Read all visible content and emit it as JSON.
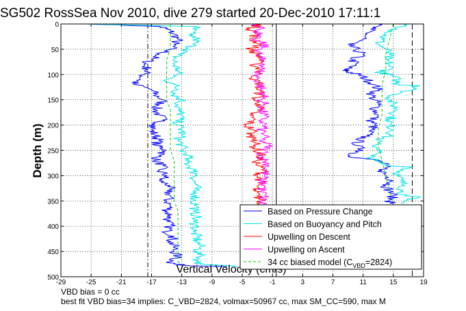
{
  "chart_data": {
    "type": "line",
    "title": "SG502 RossSea Nov 2010, dive 279 started 20-Dec-2010 17:11:1",
    "xlabel": "Vertical Velocity (cm/s)",
    "ylabel": "Depth (m)",
    "xlim": [
      -29,
      19
    ],
    "ylim": [
      500,
      0
    ],
    "y_inverted": true,
    "grid": true,
    "grid_style": "dotted",
    "legend_position": "bottom-right",
    "xticks": [
      -29,
      -25,
      -21,
      -17,
      -13,
      -9,
      -5,
      -1,
      3,
      7,
      11,
      15,
      19
    ],
    "yticks": [
      0,
      50,
      100,
      150,
      200,
      250,
      300,
      350,
      400,
      450,
      500
    ],
    "reference_lines": [
      {
        "x": -17.5,
        "style": "dash-dot",
        "color": "#000000"
      },
      {
        "x": -0.5,
        "style": "solid",
        "color": "#000000"
      },
      {
        "x": 17.5,
        "style": "dashed",
        "color": "#000000"
      }
    ],
    "series": [
      {
        "name": "Based on Pressure Change",
        "color": "#0000ff",
        "groups": [
          {
            "depth": [
              0,
              5,
              10,
              20,
              30,
              40,
              50,
              60,
              70,
              80,
              90,
              100,
              110,
              118,
              130,
              140,
              150,
              160,
              170,
              180,
              190,
              200,
              210,
              220,
              230,
              240,
              250,
              260,
              270,
              280,
              290,
              300,
              310,
              320,
              330,
              340,
              350,
              360,
              370,
              380,
              390,
              400,
              410,
              420,
              430,
              440,
              450,
              460,
              470,
              475,
              478,
              480
            ],
            "velocity": [
              -25,
              -16,
              -15,
              -14,
              -13.5,
              -14,
              -14.5,
              -16,
              -17,
              -18,
              -17.5,
              -18,
              -18.5,
              -19.5,
              -17,
              -16.5,
              -15.5,
              -16,
              -16.5,
              -16,
              -15.5,
              -16.5,
              -17,
              -16.5,
              -16,
              -16.5,
              -15,
              -16,
              -16.5,
              -15.5,
              -16,
              -15,
              -16,
              -14.5,
              -15,
              -14.5,
              -15,
              -14.5,
              -15,
              -14.5,
              -15,
              -14.5,
              -15,
              -14,
              -14.5,
              -14,
              -14,
              -13.5,
              -14.5,
              -14,
              -12,
              -7
            ]
          },
          {
            "depth": [
              0,
              10,
              20,
              30,
              40,
              50,
              60,
              70,
              80,
              90,
              95,
              100,
              110,
              120,
              130,
              140,
              150,
              160,
              170,
              180,
              190,
              200,
              210,
              220,
              230,
              240,
              250,
              260,
              265,
              270,
              280,
              290,
              300,
              310,
              320,
              330,
              340,
              350,
              355
            ],
            "velocity": [
              13,
              12,
              11.5,
              11,
              9,
              10,
              11,
              9.5,
              10,
              8.5,
              9,
              10.5,
              11.5,
              12.5,
              13,
              12,
              12.5,
              13,
              12.5,
              13,
              12,
              12.5,
              12,
              11.5,
              10.5,
              10,
              11,
              9,
              10.5,
              13,
              14,
              13.5,
              14,
              15,
              14,
              14.5,
              15,
              14.5,
              15
            ]
          }
        ]
      },
      {
        "name": "Based on Buoyancy and Pitch",
        "color": "#00e5e5",
        "groups": [
          {
            "depth": [
              0,
              5,
              10,
              20,
              30,
              40,
              50,
              60,
              70,
              80,
              90,
              100,
              110,
              120,
              130,
              140,
              150,
              160,
              170,
              180,
              190,
              200,
              210,
              220,
              230,
              240,
              250,
              260,
              270,
              280,
              290,
              300,
              310,
              320,
              330,
              340,
              350,
              360,
              370,
              380,
              390,
              400,
              410,
              420,
              430,
              440,
              450,
              460,
              470,
              475,
              478,
              480
            ],
            "velocity": [
              -26,
              -11,
              -11.5,
              -12,
              -11,
              -11.5,
              -12,
              -13.5,
              -14,
              -14,
              -13.5,
              -13.5,
              -15,
              -14,
              -13.5,
              -14,
              -13,
              -13.5,
              -13.5,
              -13,
              -13.5,
              -13.5,
              -13,
              -13,
              -13.5,
              -13,
              -13,
              -12,
              -12.5,
              -12,
              -11.5,
              -11,
              -11.5,
              -11,
              -11.5,
              -11,
              -11.5,
              -11,
              -11.5,
              -11,
              -11.5,
              -11,
              -11.5,
              -11,
              -11,
              -10.5,
              -11,
              -10.5,
              -11,
              -10.5,
              -7,
              -6
            ]
          },
          {
            "depth": [
              0,
              10,
              20,
              30,
              40,
              50,
              60,
              70,
              80,
              90,
              95,
              100,
              110,
              120,
              122,
              130,
              140,
              150,
              160,
              170,
              180,
              190,
              200,
              210,
              220,
              230,
              240,
              250,
              260,
              270,
              280,
              283,
              290,
              300,
              310,
              320,
              330,
              340,
              343,
              350,
              355
            ],
            "velocity": [
              17,
              15.5,
              14,
              13.5,
              13,
              14,
              14.5,
              14,
              14.5,
              14.5,
              13,
              14.5,
              15.5,
              15.5,
              18.5,
              17.5,
              15,
              14.5,
              15,
              15.5,
              15,
              14.5,
              14.5,
              15,
              14.5,
              13,
              12.5,
              13.5,
              12,
              12.5,
              14,
              17.5,
              16,
              15.5,
              16,
              16.5,
              16,
              16.5,
              18.5,
              16.5,
              16
            ]
          }
        ]
      },
      {
        "name": "Upwelling on Descent",
        "color": "#ff0000",
        "groups": [
          {
            "depth": [
              0,
              5,
              10,
              20,
              30,
              40,
              50,
              60,
              70,
              80,
              90,
              100,
              110,
              120,
              130,
              140,
              150,
              160,
              170,
              180,
              190,
              200,
              210,
              220,
              230,
              240,
              250,
              260,
              270,
              280,
              290,
              300,
              310,
              320,
              330,
              340,
              350,
              360,
              365
            ],
            "velocity": [
              -3,
              -3,
              -4,
              -3,
              -4,
              -2.5,
              -4,
              -3,
              -2.5,
              -3.5,
              -2.5,
              -3,
              -3.5,
              -2.5,
              -3,
              -2.5,
              -3.5,
              -2.5,
              -3,
              -4,
              -3.5,
              -4.5,
              -3.5,
              -4,
              -3,
              -3.5,
              -3,
              -2.5,
              -3,
              -3,
              -2,
              -3,
              -2.5,
              -3,
              -3.5,
              -3,
              -2.5,
              -3,
              -3
            ]
          }
        ]
      },
      {
        "name": "Upwelling on Ascent",
        "color": "#ff00ff",
        "groups": [
          {
            "depth": [
              0,
              10,
              20,
              30,
              40,
              50,
              60,
              70,
              80,
              90,
              100,
              110,
              120,
              130,
              140,
              150,
              160,
              170,
              180,
              190,
              200,
              210,
              220,
              230,
              240,
              250,
              260,
              270,
              280,
              290,
              300,
              310,
              320,
              330,
              340,
              350,
              360,
              365
            ],
            "velocity": [
              -3,
              -2.5,
              -3,
              -3.5,
              -2,
              -2.5,
              -3,
              -2.5,
              -2,
              -2.5,
              -3,
              -3,
              -2.5,
              -2.5,
              -2,
              -2.5,
              -2,
              -2.5,
              -2,
              -2.5,
              -2,
              -2.5,
              -2,
              -2.5,
              -1.5,
              -2,
              -2.5,
              -2,
              -1.5,
              -2,
              -2,
              -2.5,
              -2,
              -2.5,
              -2,
              -2.5,
              -2,
              -2
            ]
          }
        ]
      },
      {
        "name": "34 cc biased model (C_VBD=2824)",
        "color": "#00cc00",
        "style": "dashed",
        "groups": [
          {
            "depth": [
              0,
              10,
              30,
              50,
              70,
              90,
              110,
              130,
              150,
              170,
              190,
              210,
              230,
              250,
              270,
              290,
              310,
              330,
              350,
              370,
              390,
              410,
              430,
              450,
              470,
              478
            ],
            "velocity": [
              -14.5,
              -14.5,
              -14.5,
              -14.5,
              -15,
              -15,
              -15,
              -15,
              -15,
              -14.5,
              -14.5,
              -14.5,
              -14.5,
              -14.5,
              -14,
              -14,
              -14,
              -14,
              -14,
              -13.5,
              -13.5,
              -13.5,
              -13.5,
              -13.5,
              -13.5,
              -13
            ]
          },
          {
            "depth": [
              0,
              30,
              60,
              90,
              120,
              150,
              180,
              210,
              240,
              270,
              300,
              330,
              355
            ],
            "velocity": [
              15,
              14.5,
              14,
              14,
              13.5,
              13.5,
              13.5,
              13,
              13,
              13.5,
              14,
              14.5,
              15
            ]
          }
        ]
      }
    ],
    "legend": {
      "items": [
        {
          "label": "Based on Pressure Change",
          "color": "#0000ff",
          "dash": "none"
        },
        {
          "label": "Based on Buoyancy and Pitch",
          "color": "#00e5e5",
          "dash": "none"
        },
        {
          "label": "Upwelling on Descent",
          "color": "#ff0000",
          "dash": "none"
        },
        {
          "label": "Upwelling on Ascent",
          "color": "#ff00ff",
          "dash": "none"
        },
        {
          "label_main": "34 cc biased model (C",
          "label_sub": "VBD",
          "label_tail": "=2824)",
          "color": "#00cc00",
          "dash": "dashed"
        }
      ]
    },
    "annotations": {
      "line1": "VBD bias = 0 cc",
      "line2": "best fit VBD bias=34 implies: C_VBD=2824, volmax=50967 cc, max SM_CC=590, max M"
    }
  }
}
